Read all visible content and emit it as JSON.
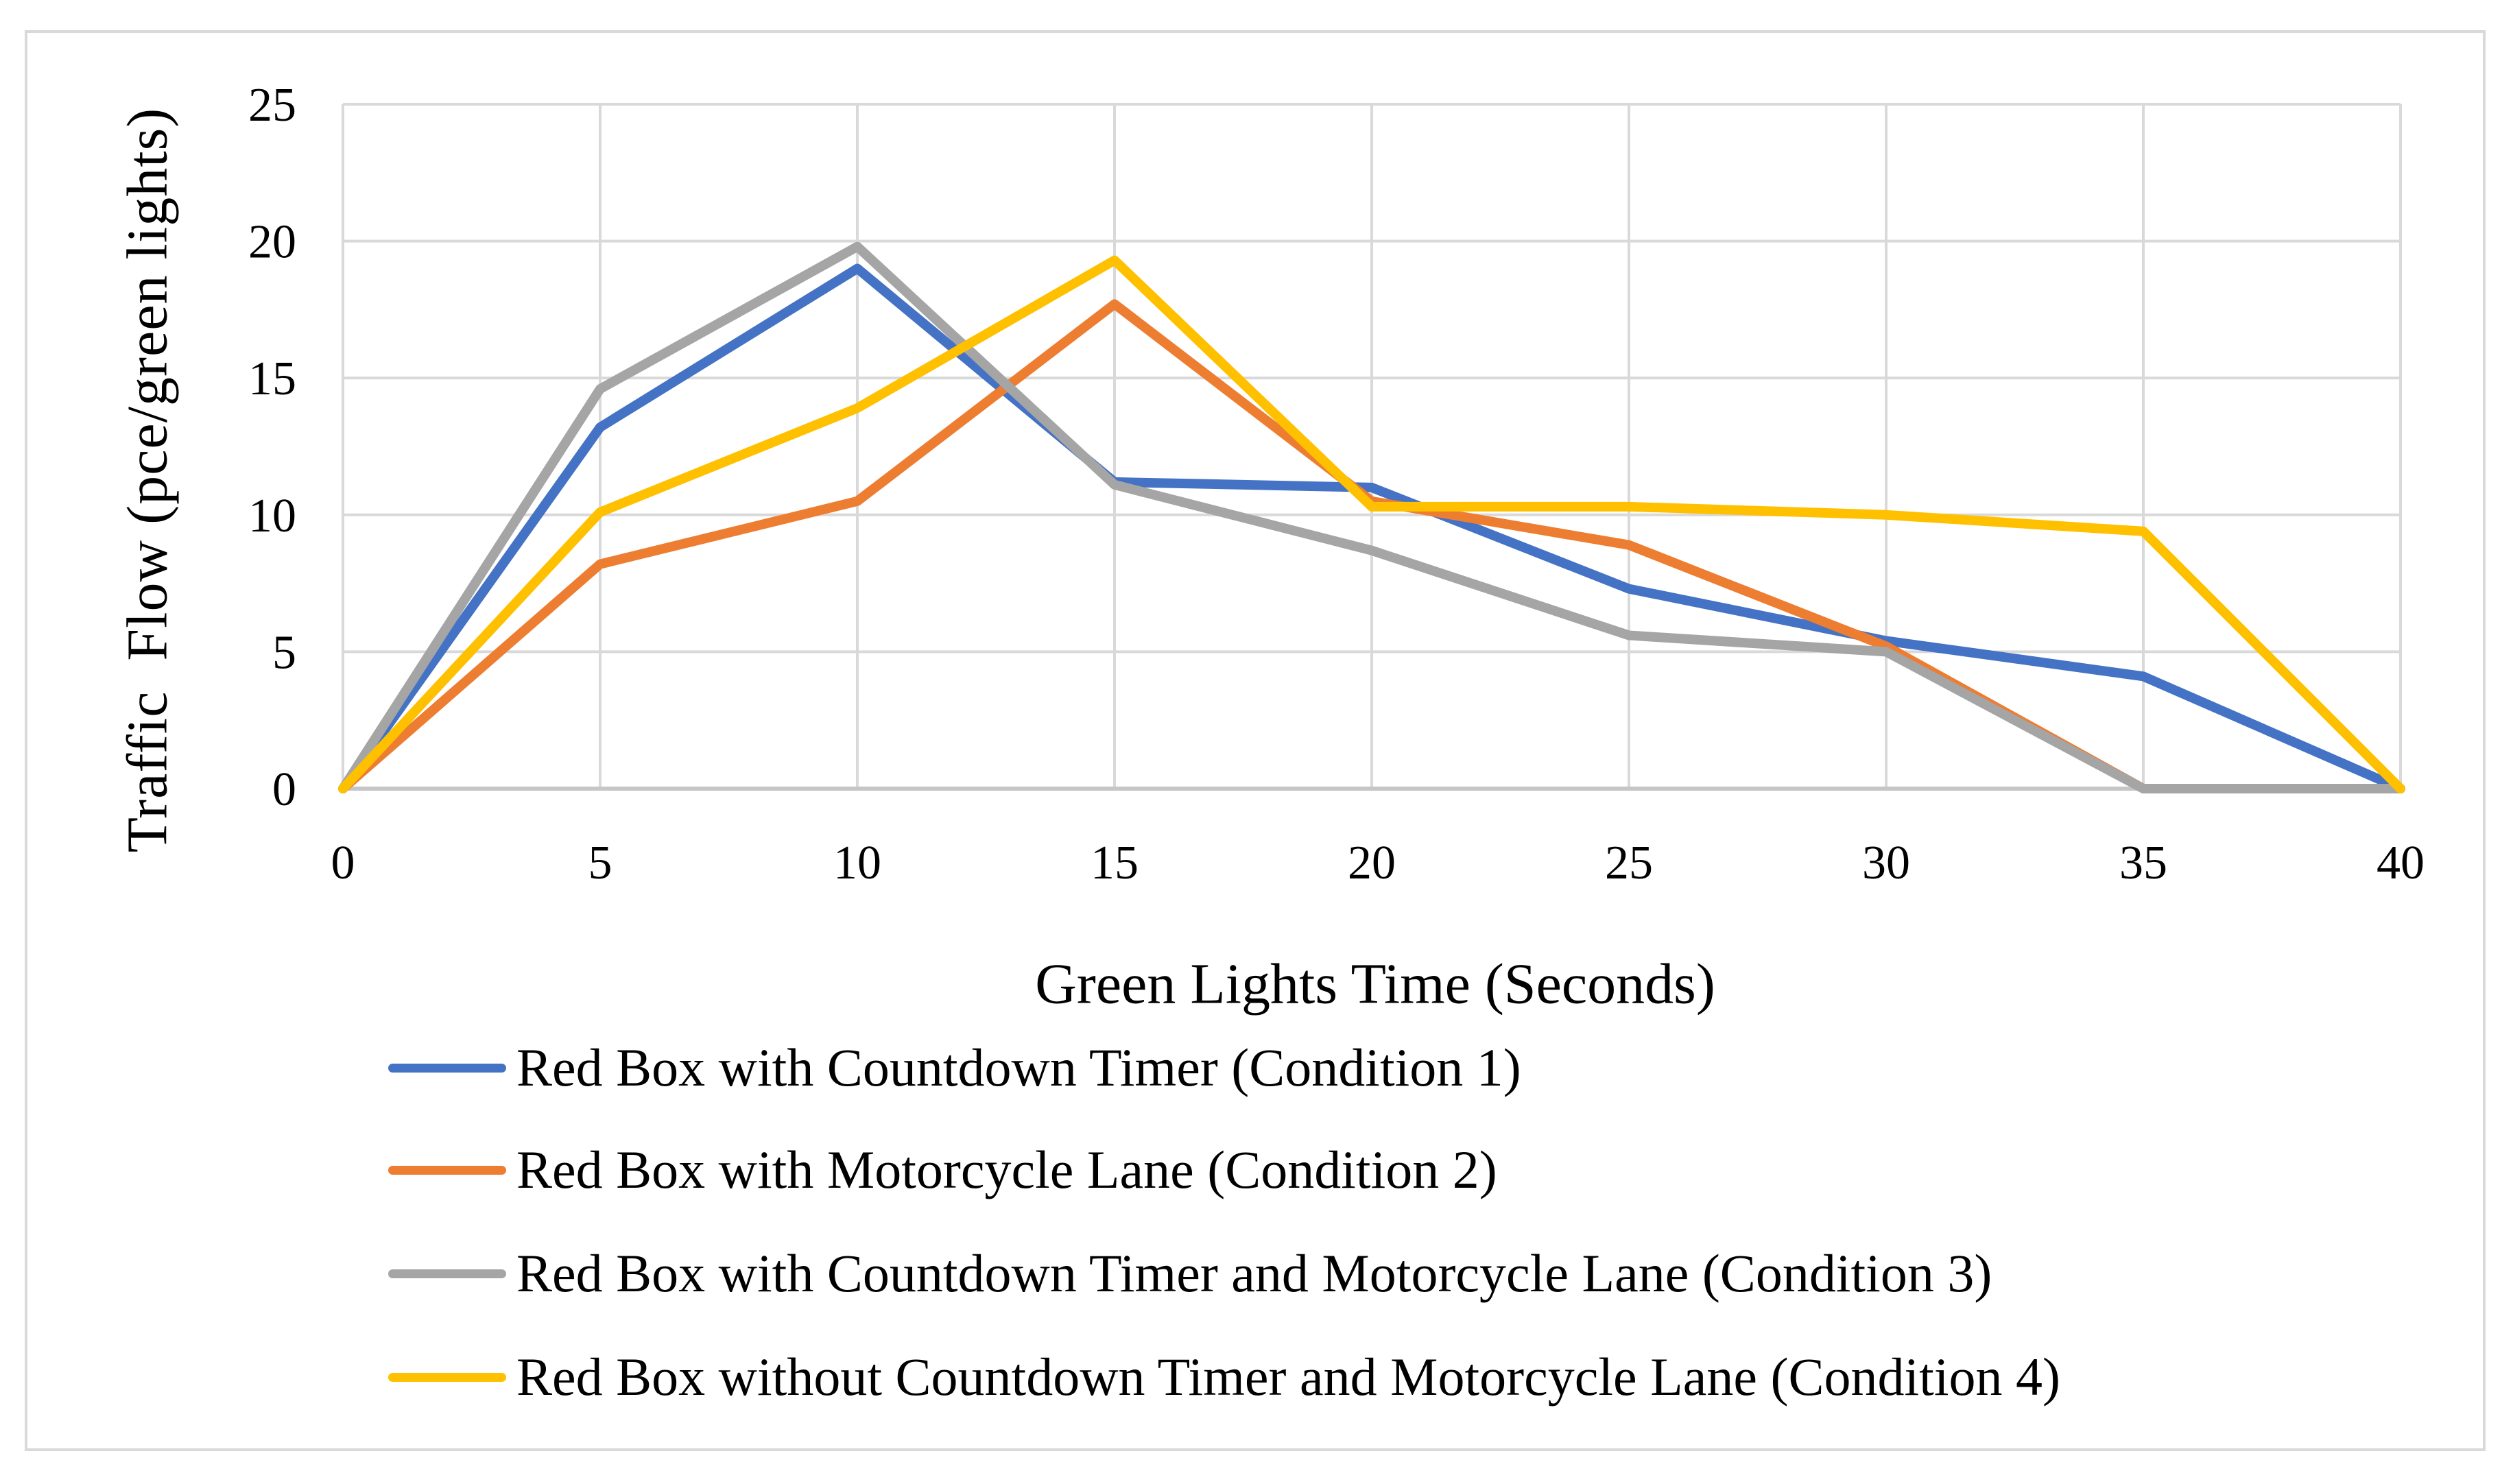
{
  "figure": {
    "background": "#FFFFFF",
    "border_color": "#D9D9D9"
  },
  "chart_data": {
    "type": "line",
    "title": "",
    "xlabel": "Green Lights Time (Seconds)",
    "ylabel": "Traffic  Flow (pce/green lights)",
    "x": [
      0,
      5,
      10,
      15,
      20,
      25,
      30,
      35,
      40
    ],
    "xticks": [
      "0",
      "5",
      "10",
      "15",
      "20",
      "25",
      "30",
      "35",
      "40"
    ],
    "yticks": [
      "0",
      "5",
      "10",
      "15",
      "20",
      "25"
    ],
    "xlim": [
      0,
      40
    ],
    "ylim": [
      0,
      25
    ],
    "grid": true,
    "gridline_color": "#D9D9D9",
    "axis_line_color": "#C6C6C6",
    "legend_position": "bottom-left",
    "series": [
      {
        "name": "Red Box with Countdown Timer (Condition 1)",
        "color": "#4472C4",
        "values": [
          0,
          13.2,
          19.0,
          11.2,
          11.0,
          7.3,
          5.4,
          4.1,
          0
        ]
      },
      {
        "name": "Red Box with Motorcycle Lane (Condition 2)",
        "color": "#ED7D31",
        "values": [
          0,
          8.2,
          10.5,
          17.7,
          10.5,
          8.9,
          5.2,
          0,
          0
        ]
      },
      {
        "name": "Red Box with Countdown Timer and Motorcycle Lane (Condition 3)",
        "color": "#A5A5A5",
        "values": [
          0,
          14.6,
          19.8,
          11.1,
          8.7,
          5.6,
          5.0,
          0,
          0
        ]
      },
      {
        "name": "Red Box without Countdown Timer and Motorcycle Lane (Condition 4)",
        "color": "#FFC000",
        "values": [
          0,
          10.1,
          13.9,
          19.3,
          10.3,
          10.3,
          10.0,
          9.4,
          0
        ]
      }
    ]
  }
}
